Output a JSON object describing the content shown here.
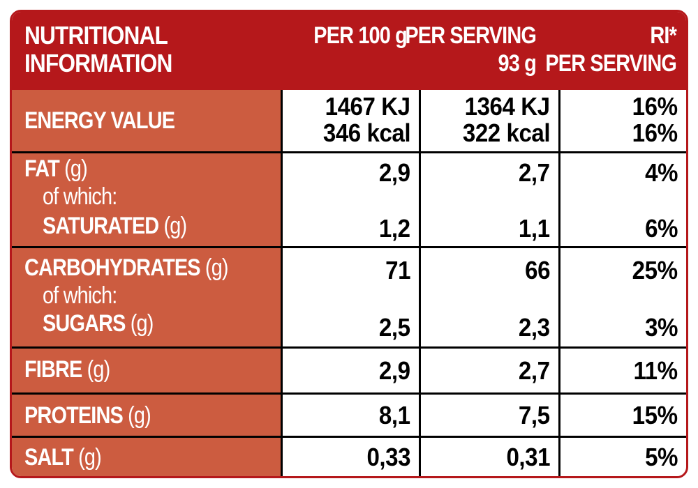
{
  "header": {
    "title_line1": "NUTRITIONAL",
    "title_line2": "INFORMATION",
    "col_per100_line1": "PER 100 g",
    "col_serving_line1": "PER SERVING",
    "col_serving_line2": "93 g",
    "col_ri_line1": "RI*",
    "col_ri_line2": "PER SERVING"
  },
  "rows": {
    "energy": {
      "label": "ENERGY VALUE",
      "per100_kj": "1467 KJ",
      "per100_kcal": "346 kcal",
      "serving_kj": "1364 KJ",
      "serving_kcal": "322 kcal",
      "ri_kj": "16%",
      "ri_kcal": "16%"
    },
    "fat": {
      "label": "FAT",
      "unit": "(g)",
      "of_which": "of which:",
      "sub_label": "SATURATED",
      "sub_unit": "(g)",
      "per100": "2,9",
      "serving": "2,7",
      "ri": "4%",
      "sub_per100": "1,2",
      "sub_serving": "1,1",
      "sub_ri": "6%"
    },
    "carbs": {
      "label": "CARBOHYDRATES",
      "unit": "(g)",
      "of_which": "of which:",
      "sub_label": "SUGARS",
      "sub_unit": "(g)",
      "per100": "71",
      "serving": "66",
      "ri": "25%",
      "sub_per100": "2,5",
      "sub_serving": "2,3",
      "sub_ri": "3%"
    },
    "fibre": {
      "label": "FIBRE",
      "unit": "(g)",
      "per100": "2,9",
      "serving": "2,7",
      "ri": "11%"
    },
    "proteins": {
      "label": "PROTEINS",
      "unit": "(g)",
      "per100": "8,1",
      "serving": "7,5",
      "ri": "15%"
    },
    "salt": {
      "label": "SALT",
      "unit": "(g)",
      "per100": "0,33",
      "serving": "0,31",
      "ri": "5%"
    }
  },
  "colors": {
    "header_red": "#b5181b",
    "label_orange": "#cc5c40",
    "border_black": "#000000"
  }
}
